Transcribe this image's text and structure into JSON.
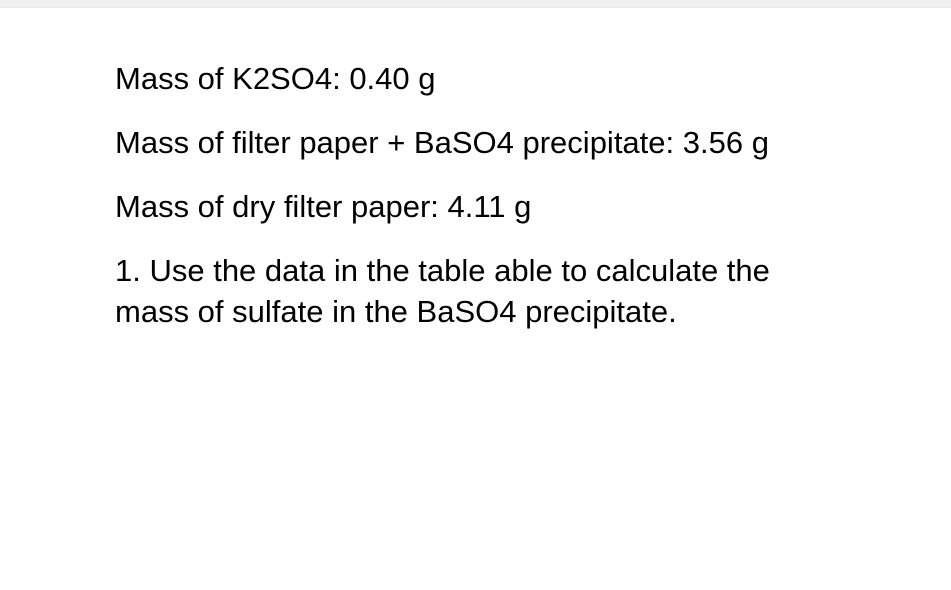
{
  "document": {
    "paragraphs": [
      "Mass of K2SO4: 0.40 g",
      "Mass of filter paper + BaSO4 precipitate: 3.56 g",
      "Mass of dry filter paper: 4.11 g",
      "1. Use the data in the table able to calculate the mass of sulfate in the BaSO4 precipitate."
    ],
    "background_color": "#ffffff",
    "text_color": "#000000",
    "top_bar_color": "#f0f0f0",
    "font_size": 31
  }
}
